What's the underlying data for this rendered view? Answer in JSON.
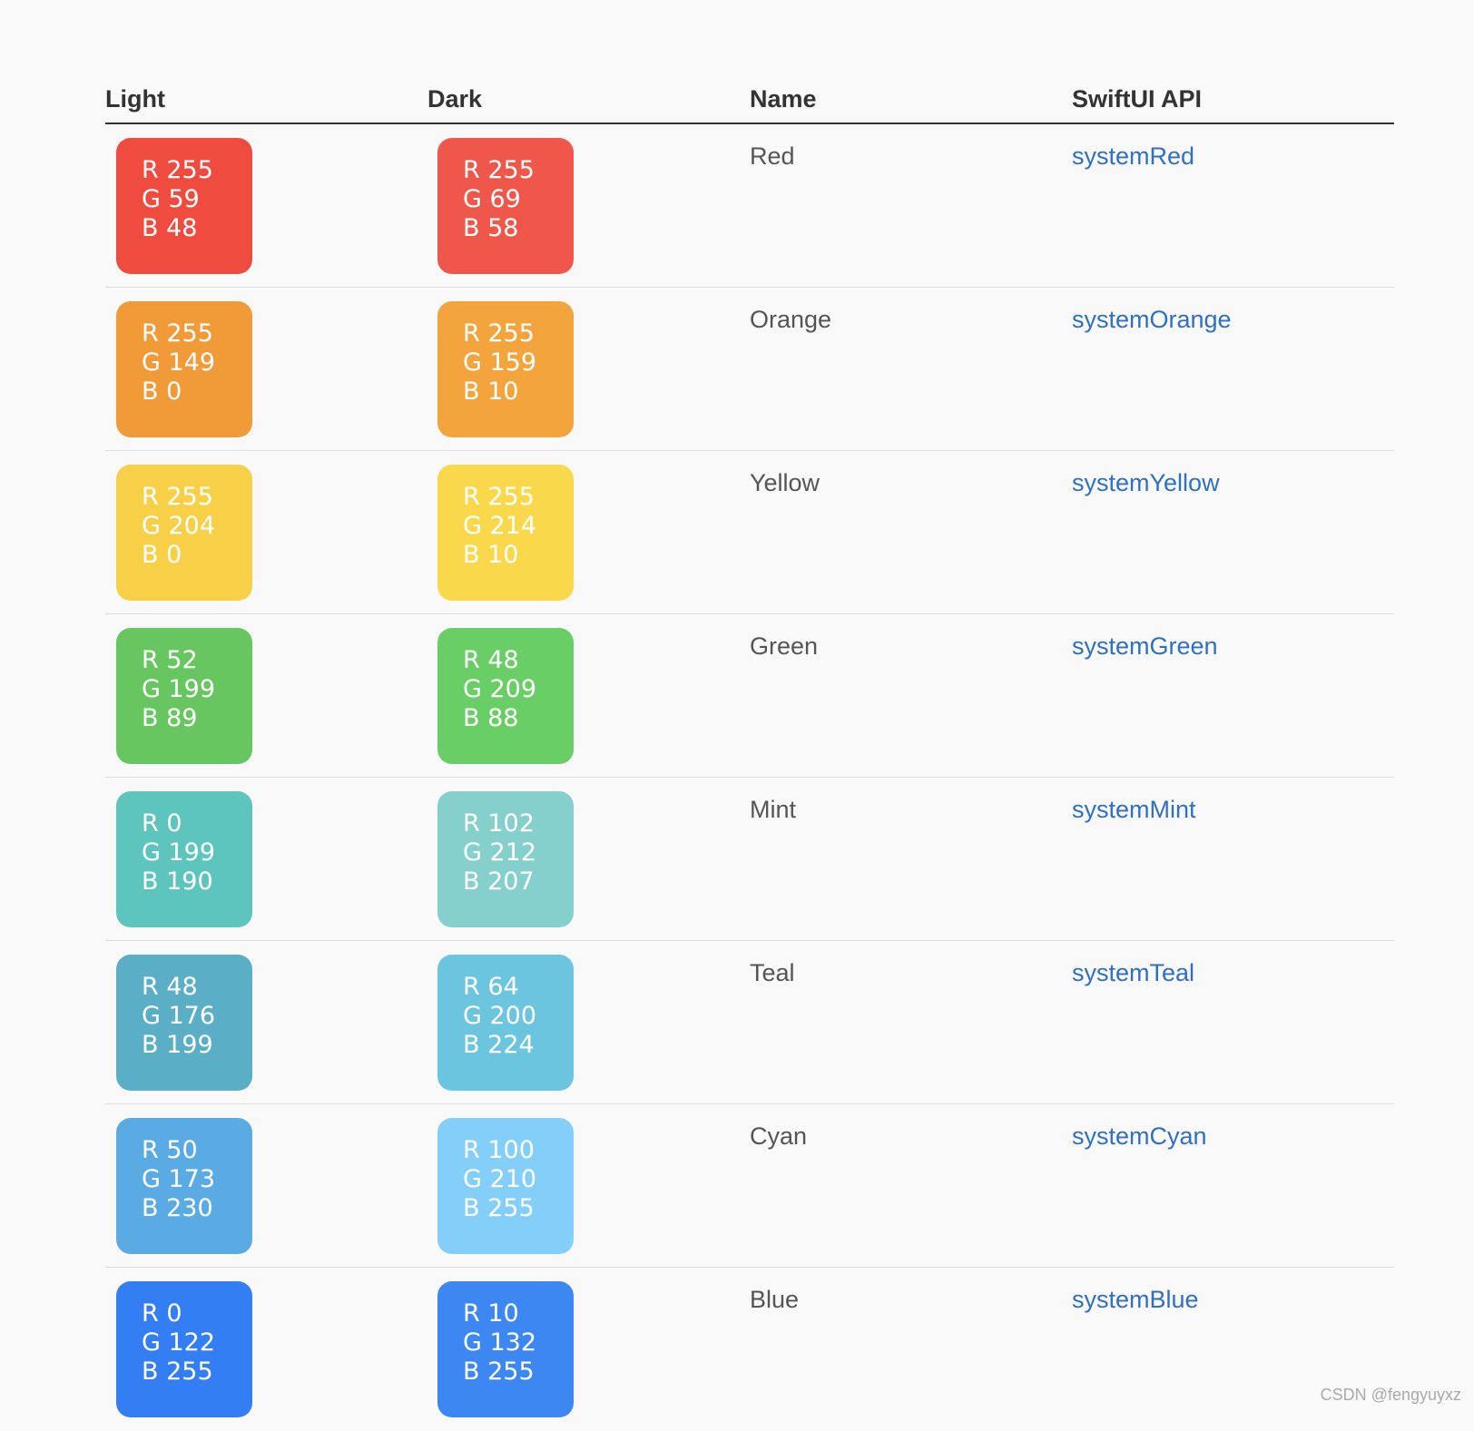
{
  "table": {
    "headers": {
      "light": "Light",
      "dark": "Dark",
      "name": "Name",
      "api": "SwiftUI API"
    },
    "rows": [
      {
        "light": {
          "r": "R 255",
          "g": "G 59",
          "b": "B 48",
          "color": "#ef4c3f"
        },
        "dark": {
          "r": "R 255",
          "g": "G 69",
          "b": "B 58",
          "color": "#ef574a"
        },
        "name": "Red",
        "api": "systemRed"
      },
      {
        "light": {
          "r": "R 255",
          "g": "G 149",
          "b": "B 0",
          "color": "#f19a38"
        },
        "dark": {
          "r": "R 255",
          "g": "G 159",
          "b": "B 10",
          "color": "#f3a43d"
        },
        "name": "Orange",
        "api": "systemOrange"
      },
      {
        "light": {
          "r": "R 255",
          "g": "G 204",
          "b": "B 0",
          "color": "#f8d048"
        },
        "dark": {
          "r": "R 255",
          "g": "G 214",
          "b": "B 10",
          "color": "#f9d84c"
        },
        "name": "Yellow",
        "api": "systemYellow"
      },
      {
        "light": {
          "r": "R 52",
          "g": "G 199",
          "b": "B 89",
          "color": "#68c660"
        },
        "dark": {
          "r": "R 48",
          "g": "G 209",
          "b": "B 88",
          "color": "#6ace66"
        },
        "name": "Green",
        "api": "systemGreen"
      },
      {
        "light": {
          "r": "R 0",
          "g": "G 199",
          "b": "B 190",
          "color": "#5dc5be"
        },
        "dark": {
          "r": "R 102",
          "g": "G 212",
          "b": "B 207",
          "color": "#85d0cd"
        },
        "name": "Mint",
        "api": "systemMint"
      },
      {
        "light": {
          "r": "R 48",
          "g": "G 176",
          "b": "B 199",
          "color": "#5aafc6"
        },
        "dark": {
          "r": "R 64",
          "g": "G 200",
          "b": "B 224",
          "color": "#6cc5de"
        },
        "name": "Teal",
        "api": "systemTeal"
      },
      {
        "light": {
          "r": "R 50",
          "g": "G 173",
          "b": "B 230",
          "color": "#5aabe4"
        },
        "dark": {
          "r": "R 100",
          "g": "G 210",
          "b": "B 255",
          "color": "#83cff9"
        },
        "name": "Cyan",
        "api": "systemCyan"
      },
      {
        "light": {
          "r": "R 0",
          "g": "G 122",
          "b": "B 255",
          "color": "#347ef3"
        },
        "dark": {
          "r": "R 10",
          "g": "G 132",
          "b": "B 255",
          "color": "#3d87f3"
        },
        "name": "Blue",
        "api": "systemBlue"
      }
    ]
  },
  "watermark": "CSDN @fengyuyxz"
}
